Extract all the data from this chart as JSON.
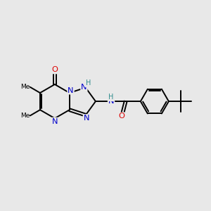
{
  "bg_color": "#e8e8e8",
  "bond_color": "#000000",
  "N_color": "#0000cc",
  "O_color": "#dd0000",
  "H_color": "#2e8b8b",
  "figsize": [
    3.0,
    3.0
  ],
  "dpi": 100,
  "xlim": [
    0,
    10
  ],
  "ylim": [
    0,
    10
  ],
  "lw": 1.4
}
